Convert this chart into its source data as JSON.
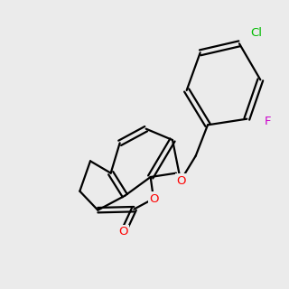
{
  "bg": "#ebebeb",
  "bond_color": "#000000",
  "O_color": "#ff0000",
  "Cl_color": "#00bb00",
  "F_color": "#cc00cc",
  "lw": 1.6,
  "fs": 9.5
}
